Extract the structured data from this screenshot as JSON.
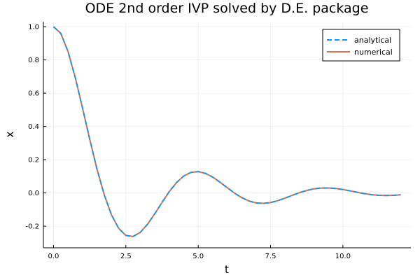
{
  "chart_data": {
    "type": "line",
    "title": "ODE 2nd order IVP solved by D.E. package",
    "xlabel": "t",
    "ylabel": "x",
    "xlim": [
      -0.35,
      12.35
    ],
    "ylim": [
      -0.33,
      1.03
    ],
    "xticks": [
      0.0,
      2.5,
      5.0,
      7.5,
      10.0
    ],
    "xtick_labels": [
      "0.0",
      "2.5",
      "5.0",
      "7.5",
      "10.0"
    ],
    "yticks": [
      -0.2,
      0.0,
      0.2,
      0.4,
      0.6,
      0.8,
      1.0
    ],
    "ytick_labels": [
      "-0.2",
      "0.0",
      "0.2",
      "0.4",
      "0.6",
      "0.8",
      "1.0"
    ],
    "grid": true,
    "legend_position": "top-right",
    "x": [
      0.0,
      0.25,
      0.5,
      0.75,
      1.0,
      1.25,
      1.5,
      1.75,
      2.0,
      2.25,
      2.5,
      2.75,
      3.0,
      3.25,
      3.5,
      3.75,
      4.0,
      4.25,
      4.5,
      4.75,
      5.0,
      5.25,
      5.5,
      5.75,
      6.0,
      6.25,
      6.5,
      6.75,
      7.0,
      7.25,
      7.5,
      7.75,
      8.0,
      8.25,
      8.5,
      8.75,
      9.0,
      9.25,
      9.5,
      9.75,
      10.0,
      10.25,
      10.5,
      10.75,
      11.0,
      11.25,
      11.5,
      11.75,
      12.0
    ],
    "series": [
      {
        "name": "analytical",
        "color": "#009AFA",
        "style": "dashed",
        "values": [
          1.0,
          0.9598,
          0.8513,
          0.6949,
          0.512,
          0.323,
          0.1448,
          -0.0098,
          -0.1307,
          -0.2129,
          -0.2557,
          -0.2619,
          -0.2368,
          -0.1883,
          -0.1252,
          -0.0569,
          0.008,
          0.0622,
          0.1015,
          0.1235,
          0.1283,
          0.1177,
          0.0952,
          0.065,
          0.0318,
          -0.0004,
          -0.0278,
          -0.0481,
          -0.0599,
          -0.0629,
          -0.0579,
          -0.0466,
          -0.0313,
          -0.0145,
          0.0016,
          0.0151,
          0.0246,
          0.0296,
          0.0301,
          0.0268,
          0.0205,
          0.0124,
          0.0037,
          -0.0043,
          -0.0104,
          -0.0143,
          -0.0155,
          -0.0143,
          -0.011
        ]
      },
      {
        "name": "numerical",
        "color": "#E36F47",
        "style": "solid",
        "values": [
          1.0,
          0.9598,
          0.8513,
          0.6949,
          0.512,
          0.323,
          0.1448,
          -0.0098,
          -0.1307,
          -0.2129,
          -0.2557,
          -0.2619,
          -0.2368,
          -0.1883,
          -0.1252,
          -0.0569,
          0.008,
          0.0622,
          0.1015,
          0.1235,
          0.1283,
          0.1177,
          0.0952,
          0.065,
          0.0318,
          -0.0004,
          -0.0278,
          -0.0481,
          -0.0599,
          -0.0629,
          -0.0579,
          -0.0466,
          -0.0313,
          -0.0145,
          0.0016,
          0.0151,
          0.0246,
          0.0296,
          0.0301,
          0.0268,
          0.0205,
          0.0124,
          0.0037,
          -0.0043,
          -0.0104,
          -0.0143,
          -0.0155,
          -0.0143,
          -0.011
        ]
      }
    ]
  }
}
